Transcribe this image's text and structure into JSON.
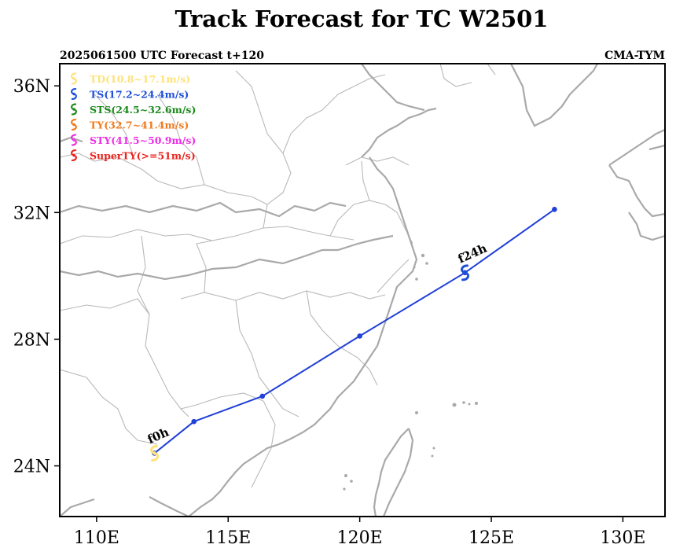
{
  "title": "Track Forecast for TC W2501",
  "header": {
    "left": "2025061500 UTC Forecast t+120",
    "right": "CMA-TYM"
  },
  "axes": {
    "lon_range": [
      108.6,
      131.6
    ],
    "lat_range": [
      22.4,
      36.7
    ],
    "x_ticks": [
      {
        "value": 110,
        "label": "110E"
      },
      {
        "value": 115,
        "label": "115E"
      },
      {
        "value": 120,
        "label": "120E"
      },
      {
        "value": 125,
        "label": "125E"
      },
      {
        "value": 130,
        "label": "130E"
      }
    ],
    "y_ticks": [
      {
        "value": 36,
        "label": "36N"
      },
      {
        "value": 32,
        "label": "32N"
      },
      {
        "value": 28,
        "label": "28N"
      },
      {
        "value": 24,
        "label": "24N"
      }
    ]
  },
  "legend": [
    {
      "label": "TD(10.8~17.1m/s)",
      "color": "#fde27a",
      "icon": "typhoon-symbol-icon"
    },
    {
      "label": "TS(17.2~24.4m/s)",
      "color": "#1f4fd8",
      "icon": "typhoon-symbol-icon"
    },
    {
      "label": "STS(24.5~32.6m/s)",
      "color": "#1a8a1a",
      "icon": "typhoon-symbol-icon"
    },
    {
      "label": "TY(32.7~41.4m/s)",
      "color": "#f07a1c",
      "icon": "typhoon-symbol-icon"
    },
    {
      "label": "STY(41.5~50.9m/s)",
      "color": "#ee2ee8",
      "icon": "typhoon-symbol-icon"
    },
    {
      "label": "SuperTY(>=51m/s)",
      "color": "#e8231c",
      "icon": "typhoon-symbol-icon"
    }
  ],
  "chart_data": {
    "type": "map-track",
    "track_color": "#2040d8",
    "track": [
      {
        "lon": 112.2,
        "lat": 24.4
      },
      {
        "lon": 113.7,
        "lat": 25.4
      },
      {
        "lon": 116.3,
        "lat": 26.2
      },
      {
        "lon": 120.0,
        "lat": 28.1
      },
      {
        "lon": 124.0,
        "lat": 30.1
      },
      {
        "lon": 127.4,
        "lat": 32.1
      }
    ],
    "markers": [
      {
        "label": "f0h",
        "lon": 112.2,
        "lat": 24.4,
        "category": "TD",
        "color": "#fde27a"
      },
      {
        "label": "f24h",
        "lon": 124.0,
        "lat": 30.1,
        "category": "TS",
        "color": "#1f4fd8"
      }
    ]
  }
}
